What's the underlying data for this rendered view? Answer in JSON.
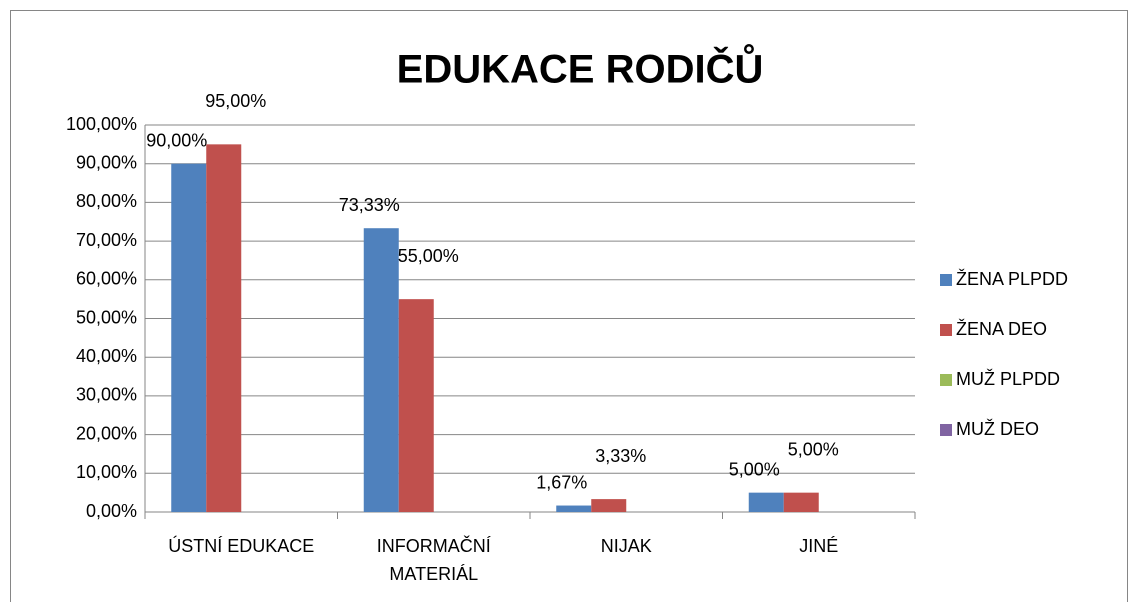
{
  "chart_data": {
    "type": "bar",
    "title": "EDUKACE RODIČŮ",
    "categories": [
      "ÚSTNÍ EDUKACE",
      "INFORMAČNÍ MATERIÁL",
      "NIJAK",
      "JINÉ"
    ],
    "series": [
      {
        "name": "ŽENA PLPDD",
        "color": "#4f81bd",
        "values": [
          90,
          73.33,
          1.67,
          5
        ],
        "value_labels": [
          "90,00%",
          "73,33%",
          "1,67%",
          "5,00%"
        ]
      },
      {
        "name": "ŽENA DEO",
        "color": "#c0504d",
        "values": [
          95,
          55,
          3.33,
          5
        ],
        "value_labels": [
          "95,00%",
          "55,00%",
          "3,33%",
          "5,00%"
        ]
      },
      {
        "name": "MUŽ PLPDD",
        "color": "#9bbb59",
        "values": [
          null,
          null,
          null,
          null
        ]
      },
      {
        "name": "MUŽ DEO",
        "color": "#8064a2",
        "values": [
          null,
          null,
          null,
          null
        ]
      }
    ],
    "ylim": [
      0,
      100
    ],
    "yticks": [
      {
        "value": 0,
        "label": "0,00%"
      },
      {
        "value": 10,
        "label": "10,00%"
      },
      {
        "value": 20,
        "label": "20,00%"
      },
      {
        "value": 30,
        "label": "30,00%"
      },
      {
        "value": 40,
        "label": "40,00%"
      },
      {
        "value": 50,
        "label": "50,00%"
      },
      {
        "value": 60,
        "label": "60,00%"
      },
      {
        "value": 70,
        "label": "70,00%"
      },
      {
        "value": 80,
        "label": "80,00%"
      },
      {
        "value": 90,
        "label": "90,00%"
      },
      {
        "value": 100,
        "label": "100,00%"
      }
    ],
    "grid": true,
    "legend": "right"
  }
}
